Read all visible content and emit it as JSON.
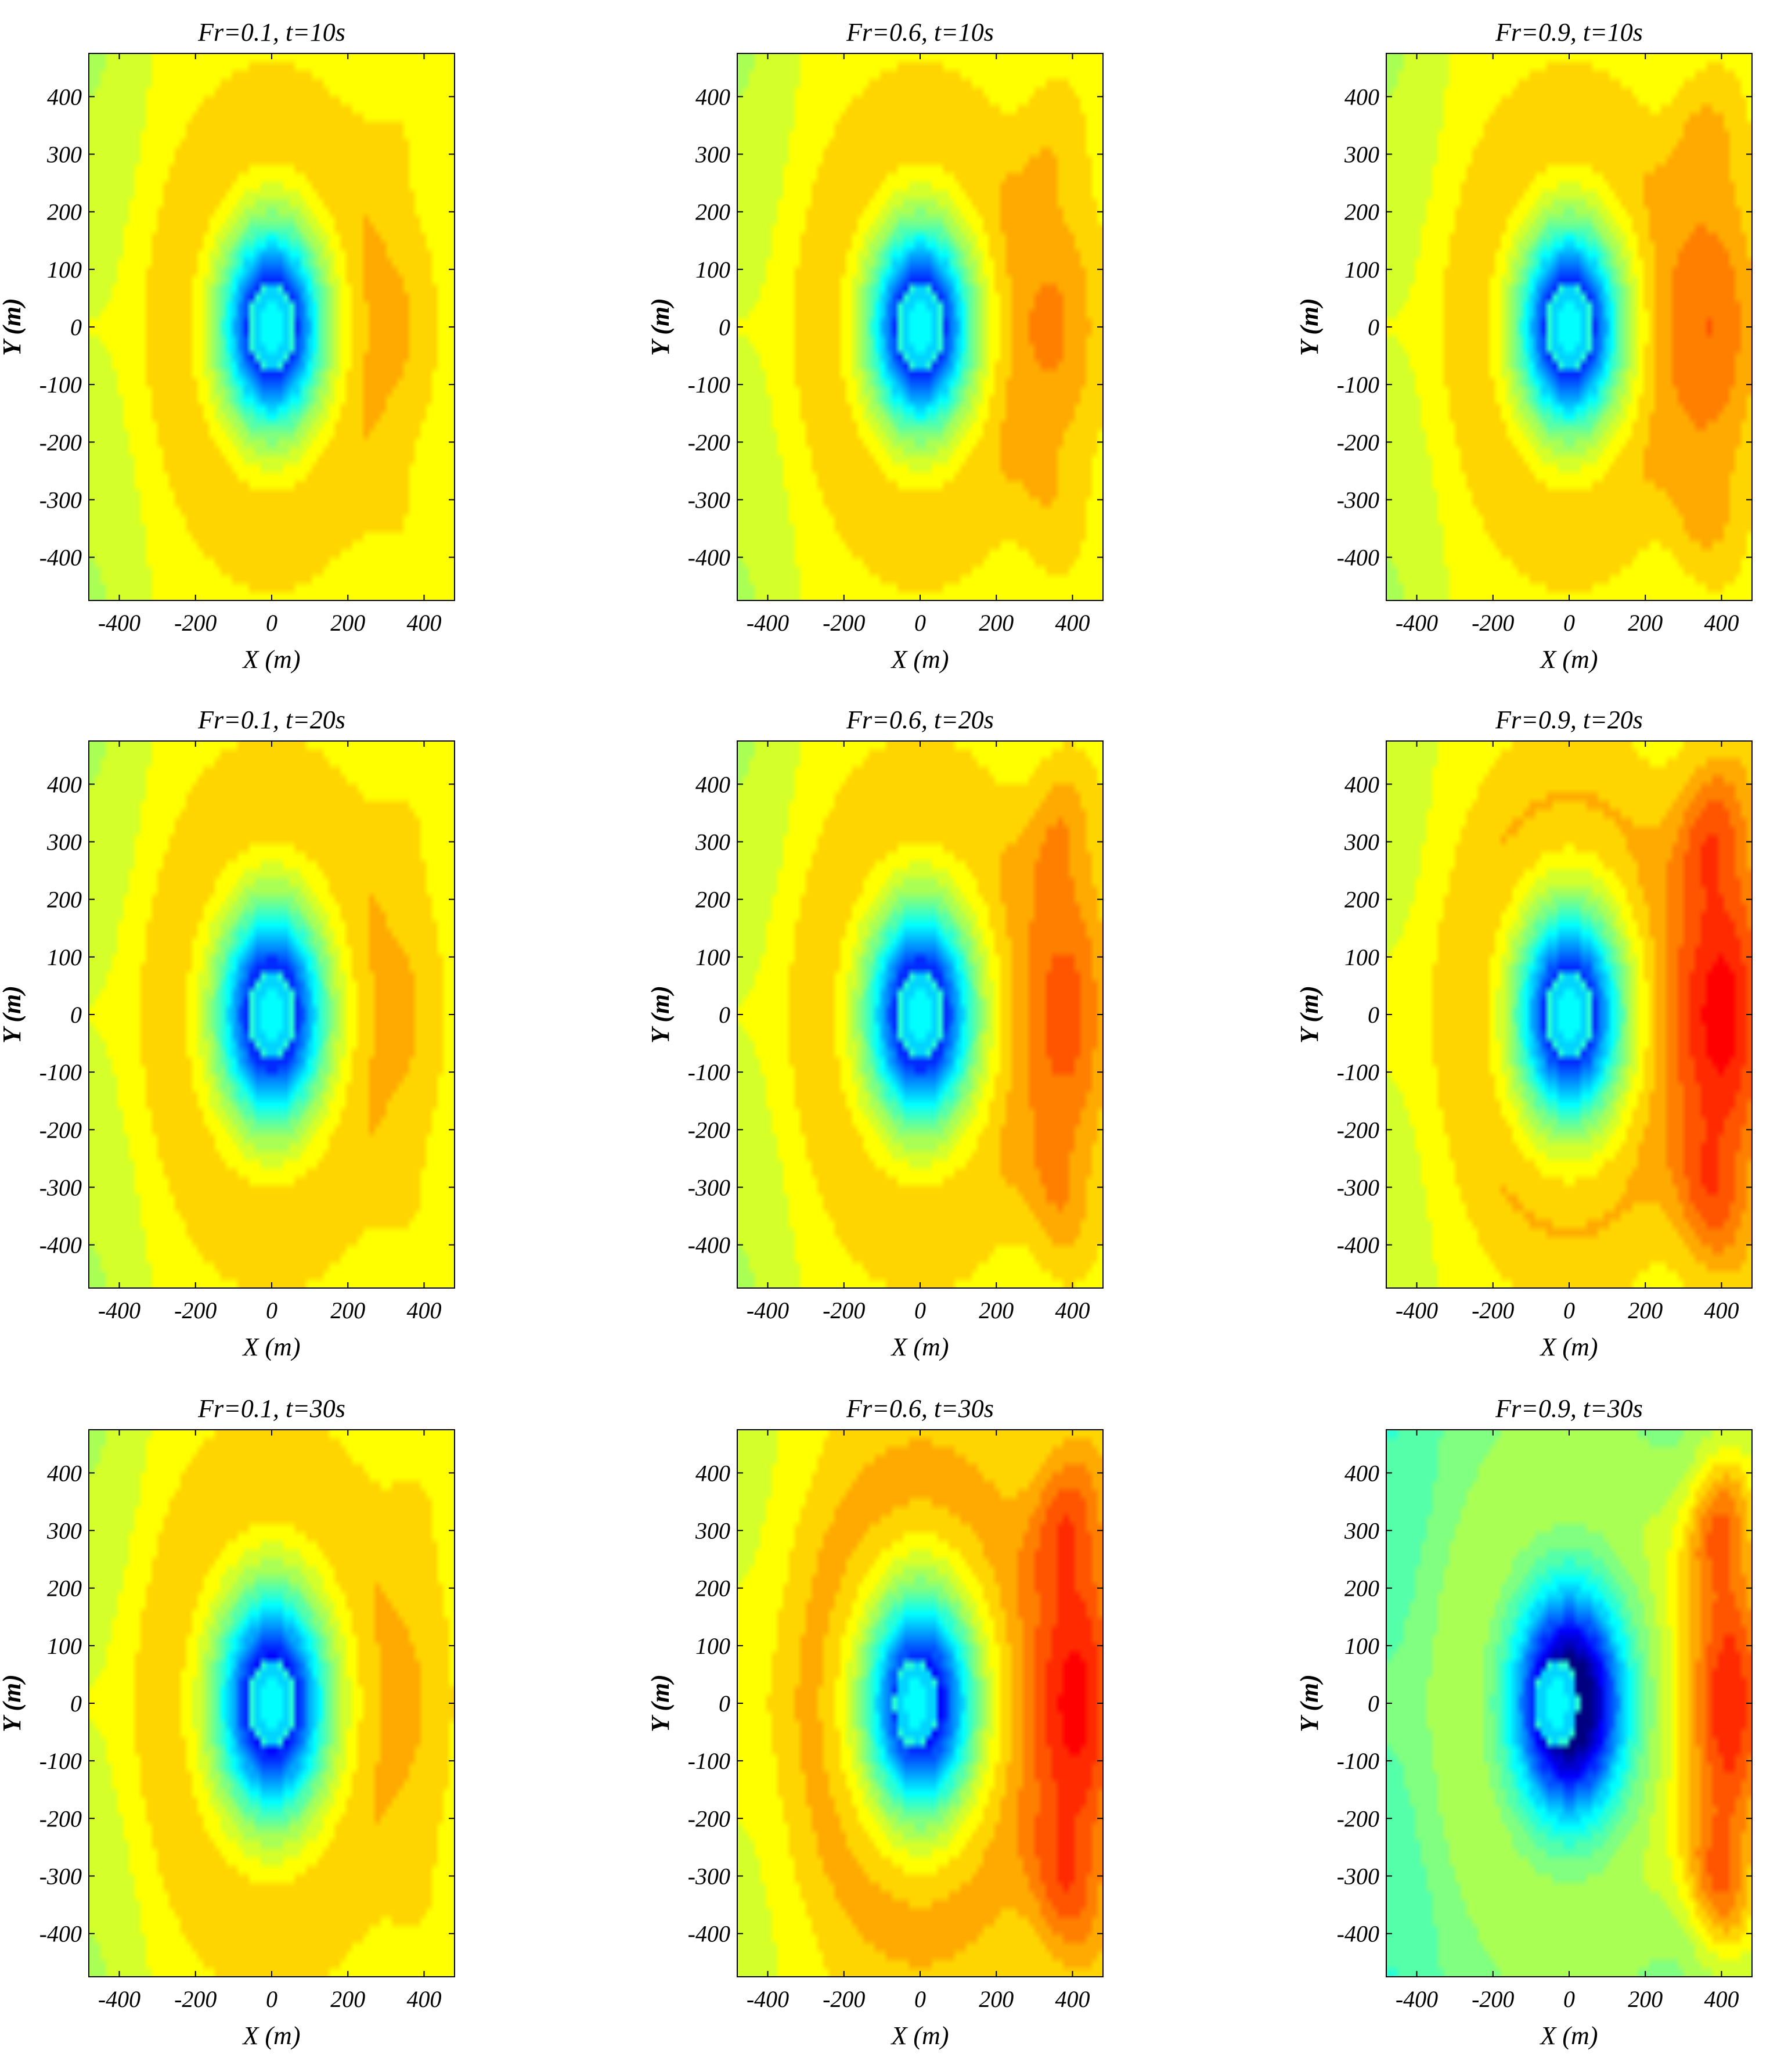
{
  "chart_data": [
    {
      "type": "heatmap",
      "title": "Fr=0.1, t=10s",
      "fr": 0.1,
      "t": 10,
      "xlabel": "X (m)",
      "ylabel": "Y (m)",
      "xlim": [
        -480,
        480
      ],
      "ylim": [
        -475,
        475
      ],
      "x_ticks": [
        -400,
        -200,
        0,
        200,
        400
      ],
      "y_ticks": [
        -400,
        -300,
        -200,
        -100,
        0,
        100,
        200,
        300,
        400
      ]
    },
    {
      "type": "heatmap",
      "title": "Fr=0.6, t=10s",
      "fr": 0.6,
      "t": 10,
      "xlabel": "X (m)",
      "ylabel": "Y (m)",
      "xlim": [
        -480,
        480
      ],
      "ylim": [
        -475,
        475
      ],
      "x_ticks": [
        -400,
        -200,
        0,
        200,
        400
      ],
      "y_ticks": [
        -400,
        -300,
        -200,
        -100,
        0,
        100,
        200,
        300,
        400
      ]
    },
    {
      "type": "heatmap",
      "title": "Fr=0.9, t=10s",
      "fr": 0.9,
      "t": 10,
      "xlabel": "X (m)",
      "ylabel": "Y (m)",
      "xlim": [
        -480,
        480
      ],
      "ylim": [
        -475,
        475
      ],
      "x_ticks": [
        -400,
        -200,
        0,
        200,
        400
      ],
      "y_ticks": [
        -400,
        -300,
        -200,
        -100,
        0,
        100,
        200,
        300,
        400
      ]
    },
    {
      "type": "heatmap",
      "title": "Fr=0.1, t=20s",
      "fr": 0.1,
      "t": 20,
      "xlabel": "X (m)",
      "ylabel": "Y (m)",
      "xlim": [
        -480,
        480
      ],
      "ylim": [
        -475,
        475
      ],
      "x_ticks": [
        -400,
        -200,
        0,
        200,
        400
      ],
      "y_ticks": [
        -400,
        -300,
        -200,
        -100,
        0,
        100,
        200,
        300,
        400
      ]
    },
    {
      "type": "heatmap",
      "title": "Fr=0.6, t=20s",
      "fr": 0.6,
      "t": 20,
      "xlabel": "X (m)",
      "ylabel": "Y (m)",
      "xlim": [
        -480,
        480
      ],
      "ylim": [
        -475,
        475
      ],
      "x_ticks": [
        -400,
        -200,
        0,
        200,
        400
      ],
      "y_ticks": [
        -400,
        -300,
        -200,
        -100,
        0,
        100,
        200,
        300,
        400
      ]
    },
    {
      "type": "heatmap",
      "title": "Fr=0.9, t=20s",
      "fr": 0.9,
      "t": 20,
      "xlabel": "X (m)",
      "ylabel": "Y (m)",
      "xlim": [
        -480,
        480
      ],
      "ylim": [
        -475,
        475
      ],
      "x_ticks": [
        -400,
        -200,
        0,
        200,
        400
      ],
      "y_ticks": [
        -400,
        -300,
        -200,
        -100,
        0,
        100,
        200,
        300,
        400
      ]
    },
    {
      "type": "heatmap",
      "title": "Fr=0.1, t=30s",
      "fr": 0.1,
      "t": 30,
      "xlabel": "X (m)",
      "ylabel": "Y (m)",
      "xlim": [
        -480,
        480
      ],
      "ylim": [
        -475,
        475
      ],
      "x_ticks": [
        -400,
        -200,
        0,
        200,
        400
      ],
      "y_ticks": [
        -400,
        -300,
        -200,
        -100,
        0,
        100,
        200,
        300,
        400
      ]
    },
    {
      "type": "heatmap",
      "title": "Fr=0.6, t=30s",
      "fr": 0.6,
      "t": 30,
      "xlabel": "X (m)",
      "ylabel": "Y (m)",
      "xlim": [
        -480,
        480
      ],
      "ylim": [
        -475,
        475
      ],
      "x_ticks": [
        -400,
        -200,
        0,
        200,
        400
      ],
      "y_ticks": [
        -400,
        -300,
        -200,
        -100,
        0,
        100,
        200,
        300,
        400
      ]
    },
    {
      "type": "heatmap",
      "title": "Fr=0.9, t=30s",
      "fr": 0.9,
      "t": 30,
      "xlabel": "X (m)",
      "ylabel": "Y (m)",
      "xlim": [
        -480,
        480
      ],
      "ylim": [
        -475,
        475
      ],
      "x_ticks": [
        -400,
        -200,
        0,
        200,
        400
      ],
      "y_ticks": [
        -400,
        -300,
        -200,
        -100,
        0,
        100,
        200,
        300,
        400
      ]
    }
  ],
  "colormap": "jet",
  "colorbar": "none"
}
